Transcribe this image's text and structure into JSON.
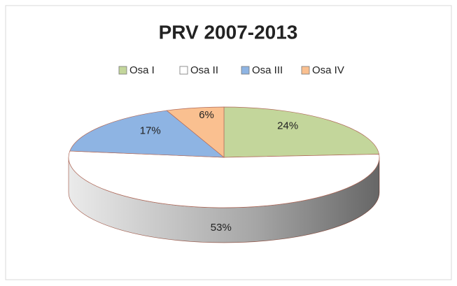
{
  "chart_data": {
    "type": "pie3d",
    "title": "PRV 2007-2013",
    "categories": [
      "Osa I",
      "Osa II",
      "Osa III",
      "Osa IV"
    ],
    "values": [
      24,
      53,
      17,
      6
    ],
    "value_labels": [
      "24%",
      "53%",
      "17%",
      "6%"
    ],
    "colors": [
      "#c3d69b",
      "#ffffff",
      "#8eb4e3",
      "#fac090"
    ],
    "legend": "top"
  }
}
